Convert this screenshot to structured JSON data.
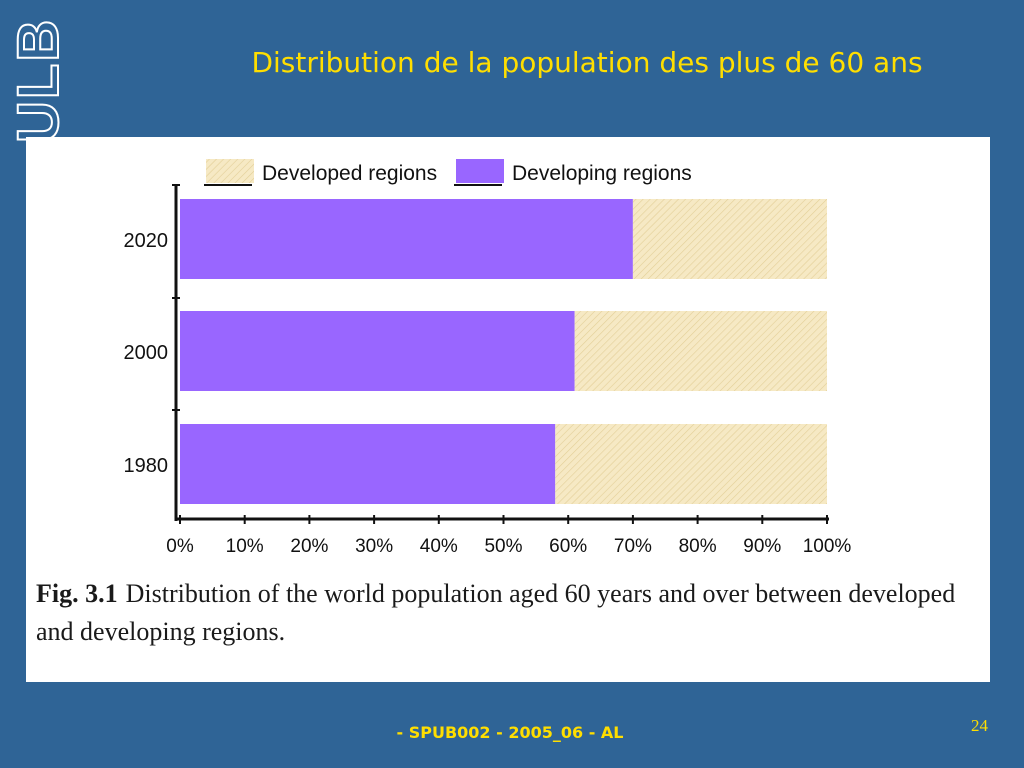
{
  "slide": {
    "title": "Distribution de la population des plus de 60 ans",
    "footer": "- SPUB002 - 2005_06 - AL",
    "page_number": "24",
    "logo_text": "ULB"
  },
  "caption": {
    "label": "Fig. 3.1",
    "text": "Distribution of the world population aged 60 years and over between developed and developing regions."
  },
  "colors": {
    "developing": "#9966ff",
    "developed": "#f6e9c4",
    "developed_hatch": "#e2cf97",
    "background": "#2f6496",
    "title": "#ffde00"
  },
  "chart_data": {
    "type": "bar",
    "orientation": "horizontal",
    "stacked": true,
    "categories": [
      "2020",
      "2000",
      "1980"
    ],
    "series": [
      {
        "name": "Developing regions",
        "values": [
          70,
          61,
          58
        ]
      },
      {
        "name": "Developed regions",
        "values": [
          30,
          39,
          42
        ]
      }
    ],
    "xlim": [
      0,
      100
    ],
    "x_ticks": [
      "0%",
      "10%",
      "20%",
      "30%",
      "40%",
      "50%",
      "60%",
      "70%",
      "80%",
      "90%",
      "100%"
    ],
    "legend": [
      "Developed regions",
      "Developing regions"
    ],
    "legend_position": "top",
    "grid": false
  }
}
